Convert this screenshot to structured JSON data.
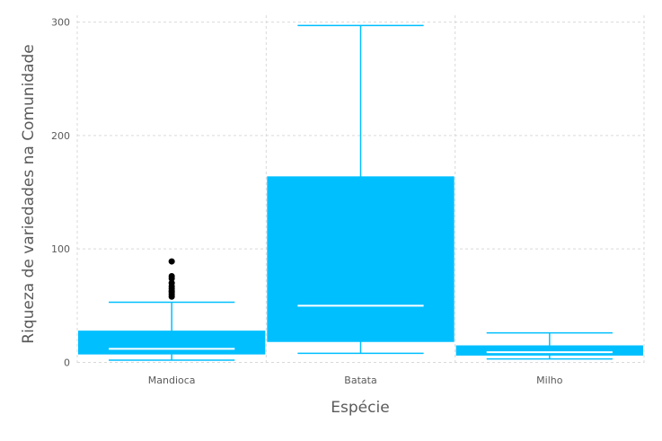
{
  "chart_data": {
    "type": "box",
    "xlabel": "Espécie",
    "ylabel": "Riqueza de variedades na Comunidade",
    "ylim": [
      -2,
      306
    ],
    "yticks": [
      0,
      100,
      200,
      300
    ],
    "grid": true,
    "box_color": "#00bfff",
    "median_color": "#ffffff",
    "outlier_color": "#000000",
    "categories": [
      "Mandioca",
      "Batata",
      "Milho"
    ],
    "boxes": [
      {
        "category": "Mandioca",
        "whisker_low": 2,
        "q1": 7,
        "median": 12,
        "q3": 28,
        "whisker_high": 53,
        "outliers": [
          58,
          60,
          62,
          63,
          65,
          67,
          70,
          74,
          76,
          89
        ]
      },
      {
        "category": "Batata",
        "whisker_low": 8,
        "q1": 18,
        "median": 50,
        "q3": 164,
        "whisker_high": 297,
        "outliers": []
      },
      {
        "category": "Milho",
        "whisker_low": 3,
        "q1": 6,
        "median": 9,
        "q3": 15,
        "whisker_high": 26,
        "outliers": []
      }
    ]
  }
}
